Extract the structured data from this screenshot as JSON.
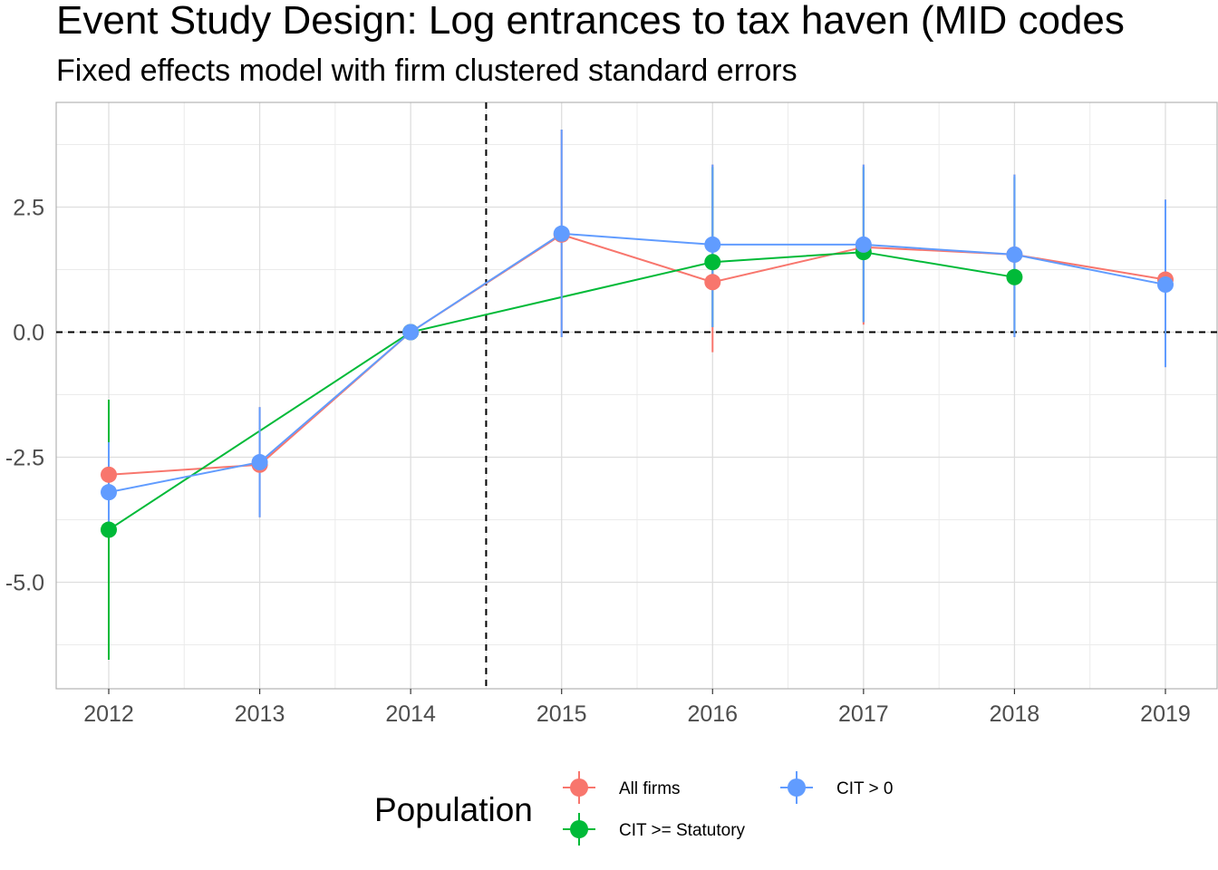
{
  "chart_data": {
    "type": "line",
    "title": "Event Study Design: Log entrances to tax haven (MID codes",
    "subtitle": "Fixed effects model with firm clustered standard errors",
    "xlabel": "",
    "ylabel": "",
    "x": [
      2012,
      2013,
      2014,
      2015,
      2016,
      2017,
      2018,
      2019
    ],
    "x_tick_labels": [
      "2012",
      "2013",
      "2014",
      "2015",
      "2016",
      "2017",
      "2018",
      "2019"
    ],
    "y_ticks": [
      2.5,
      0.0,
      -2.5,
      -5.0
    ],
    "y_tick_labels": [
      "2.5",
      "0.0",
      "-2.5",
      "-5.0"
    ],
    "xlim": [
      2011.65,
      2019.35
    ],
    "ylim": [
      -7.1,
      4.6
    ],
    "grid": true,
    "reference_lines": [
      {
        "axis": "y",
        "value": 0.0,
        "style": "dashed"
      },
      {
        "axis": "x",
        "value": 2014.5,
        "style": "dashed"
      }
    ],
    "legend": {
      "title": "Population",
      "position": "bottom"
    },
    "series": [
      {
        "name": "All firms",
        "color": "#F8766D",
        "x": [
          2012,
          2013,
          2014,
          2015,
          2016,
          2017,
          2018,
          2019
        ],
        "values": [
          -2.85,
          -2.65,
          0.0,
          1.95,
          1.0,
          1.7,
          1.55,
          1.05
        ],
        "lower": [
          -4.0,
          -3.7,
          0.0,
          -0.1,
          -0.4,
          0.15,
          -0.1,
          -0.7
        ],
        "upper": [
          -2.15,
          -1.5,
          0.0,
          4.05,
          3.35,
          3.35,
          3.15,
          2.65
        ]
      },
      {
        "name": "CIT >= Statutory",
        "color": "#00BA38",
        "x": [
          2012,
          2014,
          2016,
          2017,
          2018
        ],
        "values": [
          -3.95,
          0.0,
          1.4,
          1.6,
          1.1
        ],
        "lower": [
          -6.55,
          0.0,
          0.1,
          0.2,
          -0.05
        ],
        "upper": [
          -1.35,
          0.0,
          3.3,
          3.3,
          3.1
        ]
      },
      {
        "name": "CIT > 0",
        "color": "#619CFF",
        "x": [
          2012,
          2013,
          2014,
          2015,
          2016,
          2017,
          2018,
          2019
        ],
        "values": [
          -3.2,
          -2.6,
          0.0,
          1.97,
          1.75,
          1.75,
          1.55,
          0.95
        ],
        "lower": [
          -3.9,
          -3.7,
          0.0,
          -0.1,
          0.1,
          0.2,
          -0.1,
          -0.7
        ],
        "upper": [
          -2.2,
          -1.5,
          0.0,
          4.05,
          3.35,
          3.35,
          3.15,
          2.65
        ]
      }
    ]
  }
}
